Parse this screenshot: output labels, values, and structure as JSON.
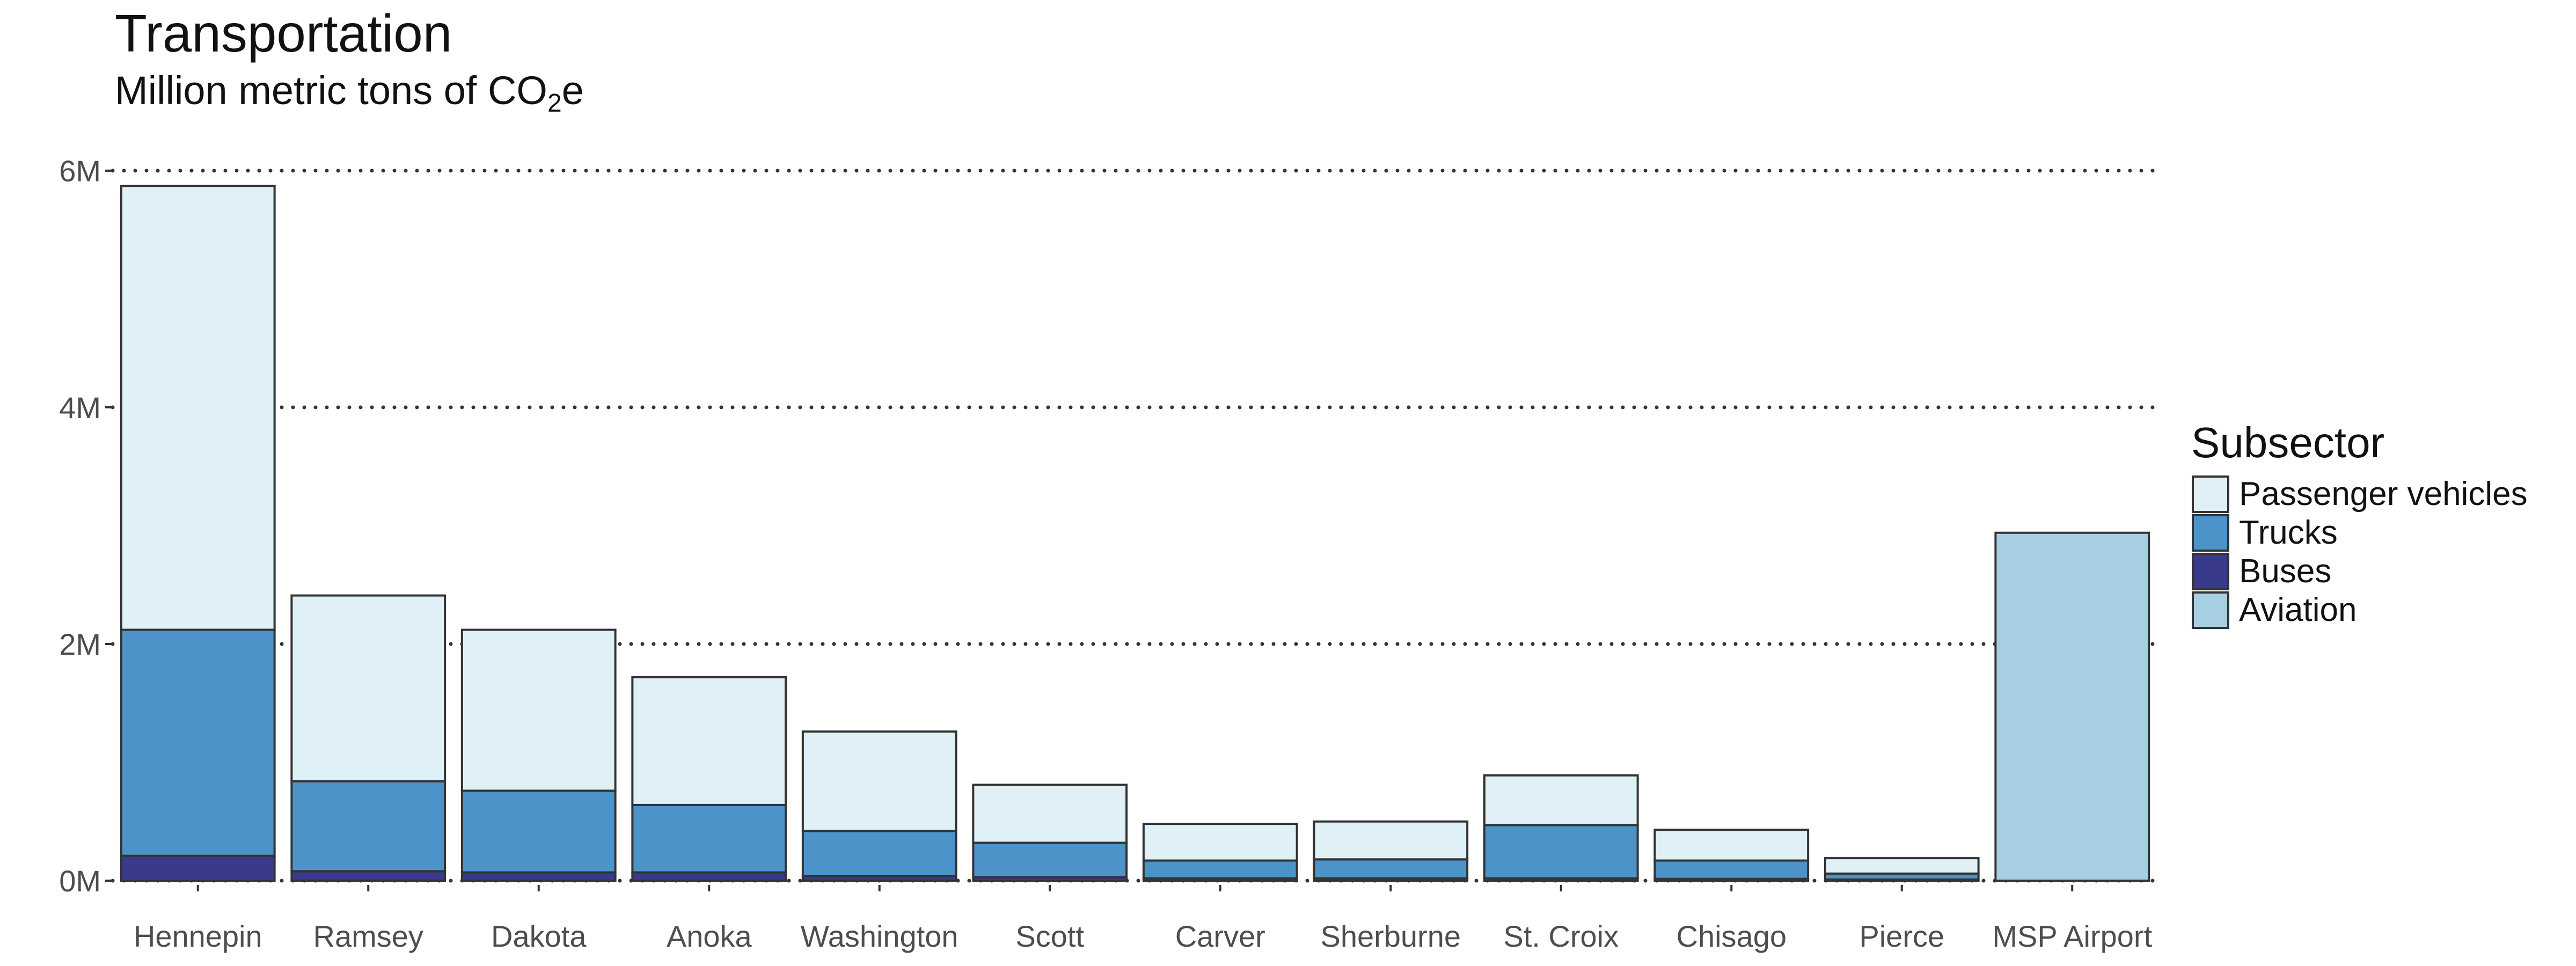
{
  "chart_data": {
    "type": "bar",
    "stacked": true,
    "title": "Transportation",
    "subtitle_parts": [
      "Million metric tons of CO",
      "2",
      "e"
    ],
    "xlabel": "",
    "ylabel": "",
    "ylim": [
      0,
      6000000
    ],
    "yticks": [
      0,
      2000000,
      4000000,
      6000000
    ],
    "ytick_labels": [
      "0M",
      "2M",
      "4M",
      "6M"
    ],
    "grid": "horizontal dotted",
    "categories": [
      "Hennepin",
      "Ramsey",
      "Dakota",
      "Anoka",
      "Washington",
      "Scott",
      "Carver",
      "Sherburne",
      "St. Croix",
      "Chisago",
      "Pierce",
      "MSP Airport"
    ],
    "legend": {
      "title": "Subsector",
      "placement": "right"
    },
    "series": [
      {
        "name": "Buses",
        "color": "#3a3a8c",
        "values": [
          210000,
          80000,
          70000,
          70000,
          40000,
          30000,
          20000,
          20000,
          20000,
          15000,
          10000,
          0
        ]
      },
      {
        "name": "Trucks",
        "color": "#4b93c9",
        "values": [
          1910000,
          760000,
          690000,
          570000,
          380000,
          290000,
          150000,
          160000,
          450000,
          155000,
          50000,
          0
        ]
      },
      {
        "name": "Passenger vehicles",
        "color": "#dff1f7",
        "values": [
          3750000,
          1570000,
          1360000,
          1080000,
          840000,
          490000,
          310000,
          320000,
          420000,
          260000,
          130000,
          0
        ]
      },
      {
        "name": "Aviation",
        "color": "#a7cfe3",
        "values": [
          0,
          0,
          0,
          0,
          0,
          0,
          0,
          0,
          0,
          0,
          0,
          2940000
        ]
      }
    ],
    "legend_order": [
      "Passenger vehicles",
      "Trucks",
      "Buses",
      "Aviation"
    ]
  }
}
